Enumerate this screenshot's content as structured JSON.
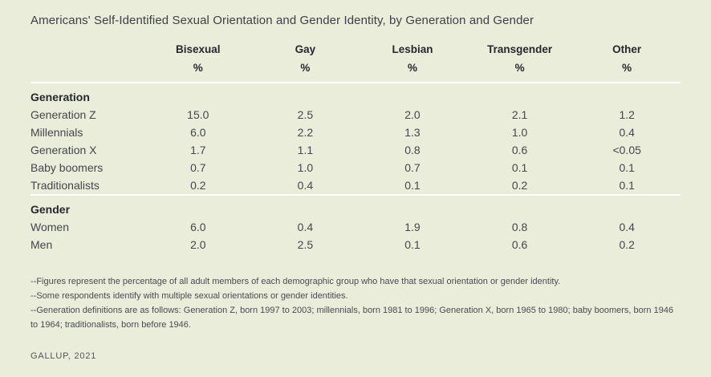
{
  "title": "Americans' Self-Identified Sexual Orientation and Gender Identity, by Generation and Gender",
  "colors": {
    "background": "#e9edda",
    "rule": "#ffffff",
    "heading_text": "#26282d",
    "body_text": "#45464b"
  },
  "chart_data": {
    "type": "table",
    "title": "Americans' Self-Identified Sexual Orientation and Gender Identity, by Generation and Gender",
    "columns": [
      "Bisexual",
      "Gay",
      "Lesbian",
      "Transgender",
      "Other"
    ],
    "unit_row": [
      "%",
      "%",
      "%",
      "%",
      "%"
    ],
    "sections": [
      {
        "label": "Generation",
        "rows": [
          {
            "label": "Generation Z",
            "values": [
              "15.0",
              "2.5",
              "2.0",
              "2.1",
              "1.2"
            ]
          },
          {
            "label": "Millennials",
            "values": [
              "6.0",
              "2.2",
              "1.3",
              "1.0",
              "0.4"
            ]
          },
          {
            "label": "Generation X",
            "values": [
              "1.7",
              "1.1",
              "0.8",
              "0.6",
              "<0.05"
            ]
          },
          {
            "label": "Baby boomers",
            "values": [
              "0.7",
              "1.0",
              "0.7",
              "0.1",
              "0.1"
            ]
          },
          {
            "label": "Traditionalists",
            "values": [
              "0.2",
              "0.4",
              "0.1",
              "0.2",
              "0.1"
            ]
          }
        ]
      },
      {
        "label": "Gender",
        "rows": [
          {
            "label": "Women",
            "values": [
              "6.0",
              "0.4",
              "1.9",
              "0.8",
              "0.4"
            ]
          },
          {
            "label": "Men",
            "values": [
              "2.0",
              "2.5",
              "0.1",
              "0.6",
              "0.2"
            ]
          }
        ]
      }
    ]
  },
  "footnotes": [
    "--Figures represent the percentage of all adult members of each demographic group who have that sexual orientation or gender identity.",
    "--Some respondents identify with multiple sexual orientations or gender identities.",
    "--Generation definitions are as follows: Generation Z, born 1997 to 2003; millennials, born 1981 to 1996; Generation X, born 1965 to 1980; baby boomers, born 1946 to 1964; traditionalists, born before 1946."
  ],
  "source": "GALLUP, 2021"
}
